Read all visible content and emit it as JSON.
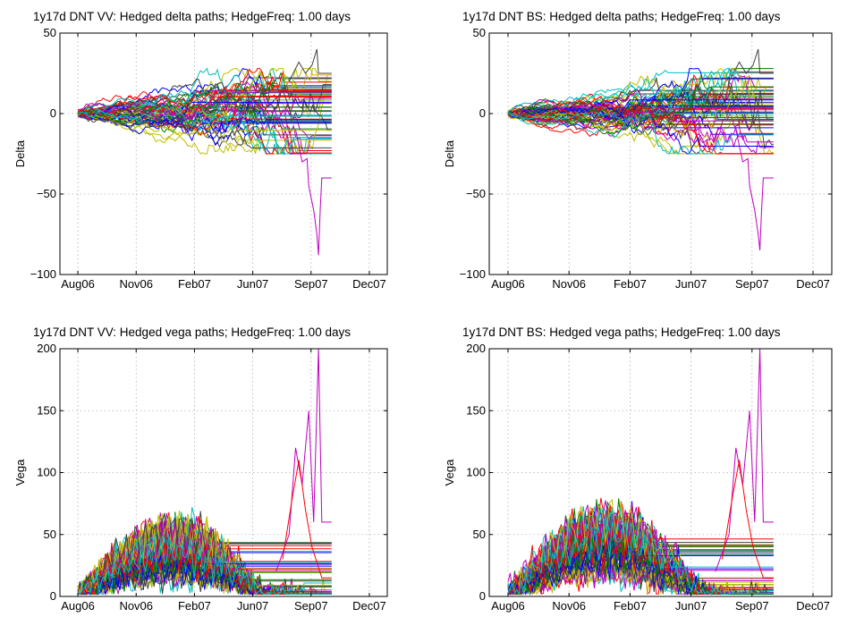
{
  "chart_data": [
    {
      "type": "line",
      "title": "1y17d DNT VV: Hedged delta paths; HedgeFreq: 1.00 days",
      "xlabel": "",
      "ylabel": "Delta",
      "x_ticks": [
        "Aug06",
        "Nov06",
        "Feb07",
        "Jun07",
        "Sep07",
        "Dec07"
      ],
      "y_ticks": [
        "50",
        "0",
        "−50",
        "−100"
      ],
      "ylim": [
        -100,
        50
      ],
      "grid": true,
      "legend": "none",
      "series_summary": {
        "paths": 100,
        "start": 0,
        "max": 40,
        "min": -88
      }
    },
    {
      "type": "line",
      "title": "1y17d DNT BS: Hedged delta paths; HedgeFreq: 1.00 days",
      "xlabel": "",
      "ylabel": "Delta",
      "x_ticks": [
        "Aug06",
        "Nov06",
        "Feb07",
        "Jun07",
        "Sep07",
        "Dec07"
      ],
      "y_ticks": [
        "50",
        "0",
        "−50",
        "−100"
      ],
      "ylim": [
        -100,
        50
      ],
      "grid": true,
      "legend": "none",
      "series_summary": {
        "paths": 100,
        "start": 0,
        "max": 40,
        "min": -85
      }
    },
    {
      "type": "line",
      "title": "1y17d DNT VV: Hedged vega paths; HedgeFreq: 1.00 days",
      "xlabel": "",
      "ylabel": "Vega",
      "x_ticks": [
        "Aug06",
        "Nov06",
        "Feb07",
        "Jun07",
        "Sep07",
        "Dec07"
      ],
      "y_ticks": [
        "200",
        "150",
        "100",
        "50",
        "0"
      ],
      "ylim": [
        0,
        200
      ],
      "grid": true,
      "legend": "none",
      "series_summary": {
        "paths": 100,
        "start": 12,
        "envelope_peak": 66,
        "spike_max": 200
      }
    },
    {
      "type": "line",
      "title": "1y17d DNT BS: Hedged vega paths; HedgeFreq: 1.00 days",
      "xlabel": "",
      "ylabel": "Vega",
      "x_ticks": [
        "Aug06",
        "Nov06",
        "Feb07",
        "Jun07",
        "Sep07",
        "Dec07"
      ],
      "y_ticks": [
        "200",
        "150",
        "100",
        "50",
        "0"
      ],
      "ylim": [
        0,
        200
      ],
      "grid": true,
      "legend": "none",
      "series_summary": {
        "paths": 100,
        "start": 12,
        "envelope_peak": 76,
        "spike_max": 200
      }
    }
  ],
  "colors": [
    "#0000ff",
    "#008000",
    "#ff0000",
    "#00bfbf",
    "#bf00bf",
    "#bfbf00",
    "#404040"
  ]
}
